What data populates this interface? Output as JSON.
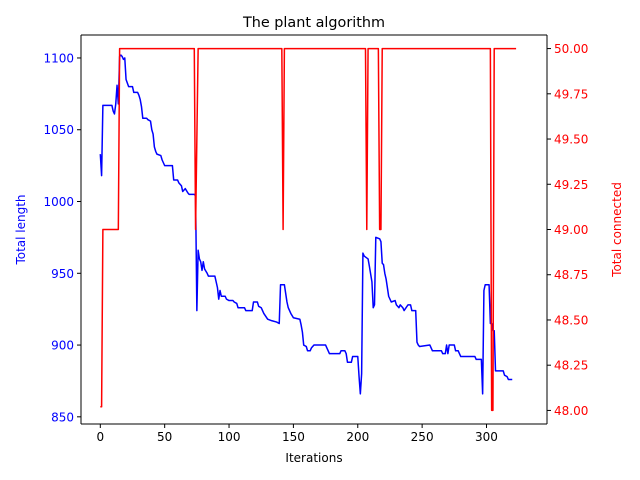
{
  "chart_data": {
    "type": "line",
    "title": "The plant algorithm",
    "xlabel": "Iterations",
    "ylabel_left": "Total length",
    "ylabel_right": "Total connected",
    "xlim": [
      -15,
      347
    ],
    "ylim_left": [
      845,
      1116
    ],
    "ylim_right": [
      47.925,
      50.075
    ],
    "xticks": [
      0,
      50,
      100,
      150,
      200,
      250,
      300
    ],
    "xtick_labels": [
      "0",
      "50",
      "100",
      "150",
      "200",
      "250",
      "300"
    ],
    "yticks_left": [
      850,
      900,
      950,
      1000,
      1050,
      1100
    ],
    "ytick_labels_left": [
      "850",
      "900",
      "950",
      "1000",
      "1050",
      "1100"
    ],
    "yticks_right": [
      48.0,
      48.25,
      48.5,
      48.75,
      49.0,
      49.25,
      49.5,
      49.75,
      50.0
    ],
    "ytick_labels_right": [
      "48.00",
      "48.25",
      "48.50",
      "48.75",
      "49.00",
      "49.25",
      "49.50",
      "49.75",
      "50.00"
    ],
    "grid": false,
    "colors": {
      "left": "#0000ff",
      "right": "#ff0000",
      "axis": "#000000"
    },
    "series": [
      {
        "axis": "left",
        "color": "#0000ff",
        "points": [
          [
            0,
            1033
          ],
          [
            1,
            1018
          ],
          [
            2,
            1067
          ],
          [
            5,
            1067
          ],
          [
            9,
            1067
          ],
          [
            10,
            1063
          ],
          [
            11,
            1061
          ],
          [
            12,
            1068
          ],
          [
            13,
            1081
          ],
          [
            14,
            1068
          ],
          [
            15,
            1101
          ],
          [
            16,
            1102
          ],
          [
            17,
            1101
          ],
          [
            18,
            1099
          ],
          [
            19,
            1100
          ],
          [
            20,
            1085
          ],
          [
            22,
            1080
          ],
          [
            25,
            1080
          ],
          [
            26,
            1076
          ],
          [
            29,
            1076
          ],
          [
            30,
            1074
          ],
          [
            31,
            1071
          ],
          [
            32,
            1066
          ],
          [
            33,
            1058
          ],
          [
            36,
            1058
          ],
          [
            37,
            1057
          ],
          [
            39,
            1056
          ],
          [
            40,
            1050
          ],
          [
            41,
            1047
          ],
          [
            42,
            1038
          ],
          [
            43,
            1035
          ],
          [
            44,
            1033
          ],
          [
            47,
            1032
          ],
          [
            48,
            1029
          ],
          [
            50,
            1025
          ],
          [
            56,
            1025
          ],
          [
            57,
            1015
          ],
          [
            60,
            1015
          ],
          [
            61,
            1013
          ],
          [
            63,
            1011
          ],
          [
            64,
            1007
          ],
          [
            66,
            1009
          ],
          [
            68,
            1006
          ],
          [
            69,
            1005
          ],
          [
            73,
            1005
          ],
          [
            74,
            1004
          ],
          [
            75,
            924
          ],
          [
            76,
            966
          ],
          [
            77,
            960
          ],
          [
            78,
            958
          ],
          [
            79,
            952
          ],
          [
            80,
            958
          ],
          [
            81,
            953
          ],
          [
            83,
            950
          ],
          [
            84,
            948
          ],
          [
            89,
            948
          ],
          [
            90,
            944
          ],
          [
            91,
            940
          ],
          [
            92,
            932
          ],
          [
            93,
            938
          ],
          [
            94,
            934
          ],
          [
            97,
            934
          ],
          [
            98,
            932
          ],
          [
            100,
            931
          ],
          [
            103,
            931
          ],
          [
            104,
            930
          ],
          [
            106,
            929
          ],
          [
            107,
            926
          ],
          [
            112,
            926
          ],
          [
            113,
            924
          ],
          [
            118,
            924
          ],
          [
            119,
            930
          ],
          [
            122,
            930
          ],
          [
            123,
            927
          ],
          [
            125,
            926
          ],
          [
            127,
            922
          ],
          [
            130,
            918
          ],
          [
            133,
            917
          ],
          [
            137,
            916
          ],
          [
            139,
            915
          ],
          [
            140,
            942
          ],
          [
            143,
            942
          ],
          [
            145,
            930
          ],
          [
            146,
            926
          ],
          [
            148,
            922
          ],
          [
            150,
            919
          ],
          [
            155,
            918
          ],
          [
            156,
            914
          ],
          [
            157,
            909
          ],
          [
            158,
            900
          ],
          [
            160,
            899
          ],
          [
            161,
            896
          ],
          [
            163,
            896
          ],
          [
            164,
            898
          ],
          [
            166,
            900
          ],
          [
            175,
            900
          ],
          [
            176,
            898
          ],
          [
            177,
            896
          ],
          [
            178,
            894
          ],
          [
            186,
            894
          ],
          [
            187,
            896
          ],
          [
            190,
            896
          ],
          [
            191,
            894
          ],
          [
            192,
            888
          ],
          [
            195,
            888
          ],
          [
            196,
            892
          ],
          [
            200,
            892
          ],
          [
            201,
            878
          ],
          [
            202,
            866
          ],
          [
            203,
            880
          ],
          [
            204,
            964
          ],
          [
            205,
            962
          ],
          [
            208,
            960
          ],
          [
            209,
            955
          ],
          [
            211,
            944
          ],
          [
            212,
            926
          ],
          [
            213,
            928
          ],
          [
            214,
            975
          ],
          [
            217,
            974
          ],
          [
            218,
            972
          ],
          [
            219,
            957
          ],
          [
            220,
            956
          ],
          [
            221,
            950
          ],
          [
            222,
            946
          ],
          [
            223,
            940
          ],
          [
            224,
            934
          ],
          [
            225,
            932
          ],
          [
            226,
            930
          ],
          [
            229,
            931
          ],
          [
            230,
            928
          ],
          [
            232,
            926
          ],
          [
            233,
            928
          ],
          [
            235,
            926
          ],
          [
            236,
            924
          ],
          [
            239,
            928
          ],
          [
            241,
            928
          ],
          [
            242,
            924
          ],
          [
            245,
            924
          ],
          [
            246,
            902
          ],
          [
            247,
            900
          ],
          [
            248,
            899
          ],
          [
            256,
            900
          ],
          [
            257,
            898
          ],
          [
            258,
            896
          ],
          [
            265,
            896
          ],
          [
            266,
            894
          ],
          [
            268,
            894
          ],
          [
            269,
            900
          ],
          [
            270,
            894
          ],
          [
            271,
            900
          ],
          [
            275,
            900
          ],
          [
            276,
            896
          ],
          [
            278,
            896
          ],
          [
            279,
            894
          ],
          [
            280,
            892
          ],
          [
            291,
            892
          ],
          [
            292,
            890
          ],
          [
            296,
            890
          ],
          [
            297,
            866
          ],
          [
            298,
            938
          ],
          [
            299,
            942
          ],
          [
            302,
            942
          ],
          [
            303,
            915
          ],
          [
            304,
            915
          ],
          [
            305,
            910
          ],
          [
            306,
            910
          ],
          [
            307,
            882
          ],
          [
            313,
            882
          ],
          [
            314,
            879
          ],
          [
            316,
            878
          ],
          [
            317,
            876
          ],
          [
            320,
            876
          ]
        ]
      },
      {
        "axis": "right",
        "color": "#ff0000",
        "points": [
          [
            0,
            48.02
          ],
          [
            1,
            48.02
          ],
          [
            2,
            49.0
          ],
          [
            14,
            49.0
          ],
          [
            15,
            50.0
          ],
          [
            73,
            50.0
          ],
          [
            74,
            49.0
          ],
          [
            76,
            50.0
          ],
          [
            141,
            50.0
          ],
          [
            142,
            49.0
          ],
          [
            143,
            50.0
          ],
          [
            206,
            50.0
          ],
          [
            207,
            49.0
          ],
          [
            208,
            50.0
          ],
          [
            216,
            50.0
          ],
          [
            217,
            49.0
          ],
          [
            218,
            49.0
          ],
          [
            219,
            50.0
          ],
          [
            303,
            50.0
          ],
          [
            304,
            48.0
          ],
          [
            305,
            48.0
          ],
          [
            306,
            50.0
          ],
          [
            323,
            50.0
          ]
        ]
      }
    ]
  }
}
